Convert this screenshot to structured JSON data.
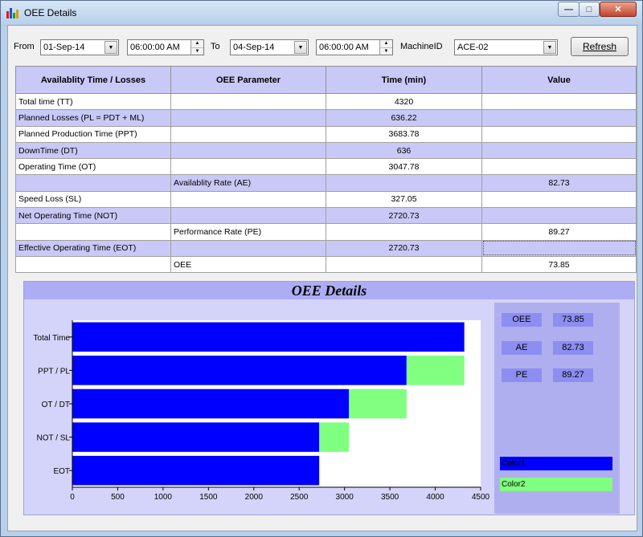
{
  "window": {
    "title": "OEE Details",
    "controls": {
      "minimize": "—",
      "maximize": "□",
      "close": "✕"
    }
  },
  "filters": {
    "from_label": "From",
    "from_date": "01-Sep-14",
    "from_time": "06:00:00 AM",
    "to_label": "To",
    "to_date": "04-Sep-14",
    "to_time": "06:00:00 AM",
    "machine_label": "MachineID",
    "machine_id": "ACE-02",
    "refresh_label": "Refresh"
  },
  "table": {
    "headers": [
      "Availablity Time / Losses",
      "OEE Parameter",
      "Time (min)",
      "Value"
    ],
    "rows": [
      [
        "Total time (TT)",
        "",
        "4320",
        ""
      ],
      [
        "Planned Losses (PL = PDT + ML)",
        "",
        "636.22",
        ""
      ],
      [
        "Planned Production Time (PPT)",
        "",
        "3683.78",
        ""
      ],
      [
        "DownTime (DT)",
        "",
        "636",
        ""
      ],
      [
        "Operating Time (OT)",
        "",
        "3047.78",
        ""
      ],
      [
        "",
        "Availablity Rate (AE)",
        "",
        "82.73"
      ],
      [
        "Speed Loss (SL)",
        "",
        "327.05",
        ""
      ],
      [
        "Net Operating Time (NOT)",
        "",
        "2720.73",
        ""
      ],
      [
        "",
        "Performance Rate (PE)",
        "",
        "89.27"
      ],
      [
        "Effective Operating Time (EOT)",
        "",
        "2720.73",
        ""
      ],
      [
        "",
        "OEE",
        "",
        "73.85"
      ]
    ]
  },
  "chart_panel": {
    "title": "OEE Details",
    "metrics": [
      {
        "label": "OEE",
        "value": "73.85"
      },
      {
        "label": "AE",
        "value": "82.73"
      },
      {
        "label": "PE",
        "value": "89.27"
      }
    ],
    "legend": [
      {
        "label": "Color1",
        "color": "#0000ff"
      },
      {
        "label": "Color2",
        "color": "#80ff80"
      }
    ]
  },
  "chart_data": {
    "type": "bar",
    "orientation": "horizontal",
    "stacked": true,
    "categories": [
      "Total Time",
      "PPT / PL",
      "OT / DT",
      "NOT / SL",
      "EOT"
    ],
    "series": [
      {
        "values": [
          4320,
          3683.78,
          3047.78,
          2720.73,
          2720.73
        ],
        "color": "#0000ff"
      },
      {
        "values": [
          0,
          636.22,
          636,
          327.05,
          0
        ],
        "color": "#80ff80"
      }
    ],
    "xlim": [
      0,
      4500
    ],
    "xticks": [
      0,
      500,
      1000,
      1500,
      2000,
      2500,
      3000,
      3500,
      4000,
      4500
    ],
    "grid": false
  }
}
